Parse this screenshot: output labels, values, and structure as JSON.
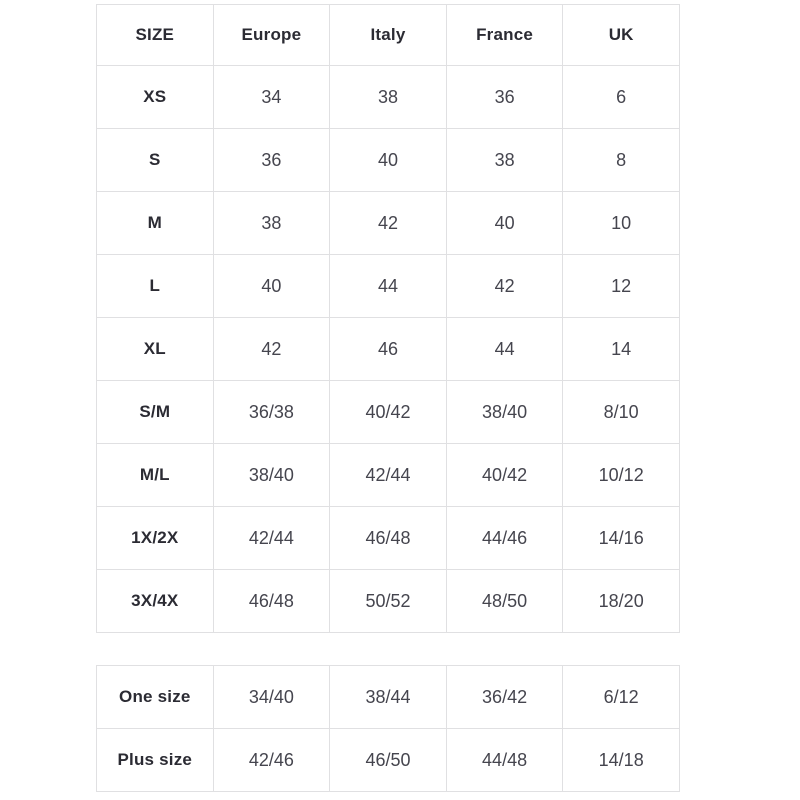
{
  "colors": {
    "background": "#ffffff",
    "border": "#e0e0e2",
    "label_text": "#2b2b33",
    "value_text": "#45454e"
  },
  "chart_data": [
    {
      "type": "table",
      "columns": [
        "SIZE",
        "Europe",
        "Italy",
        "France",
        "UK"
      ],
      "rows": [
        {
          "label": "XS",
          "values": [
            "34",
            "38",
            "36",
            "6"
          ]
        },
        {
          "label": "S",
          "values": [
            "36",
            "40",
            "38",
            "8"
          ]
        },
        {
          "label": "M",
          "values": [
            "38",
            "42",
            "40",
            "10"
          ]
        },
        {
          "label": "L",
          "values": [
            "40",
            "44",
            "42",
            "12"
          ]
        },
        {
          "label": "XL",
          "values": [
            "42",
            "46",
            "44",
            "14"
          ]
        },
        {
          "label": "S/M",
          "values": [
            "36/38",
            "40/42",
            "38/40",
            "8/10"
          ]
        },
        {
          "label": "M/L",
          "values": [
            "38/40",
            "42/44",
            "40/42",
            "10/12"
          ]
        },
        {
          "label": "1X/2X",
          "values": [
            "42/44",
            "46/48",
            "44/46",
            "14/16"
          ]
        },
        {
          "label": "3X/4X",
          "values": [
            "46/48",
            "50/52",
            "48/50",
            "18/20"
          ]
        }
      ]
    },
    {
      "type": "table",
      "columns": [],
      "rows": [
        {
          "label": "One size",
          "values": [
            "34/40",
            "38/44",
            "36/42",
            "6/12"
          ]
        },
        {
          "label": "Plus size",
          "values": [
            "42/46",
            "46/50",
            "44/48",
            "14/18"
          ]
        }
      ]
    }
  ]
}
